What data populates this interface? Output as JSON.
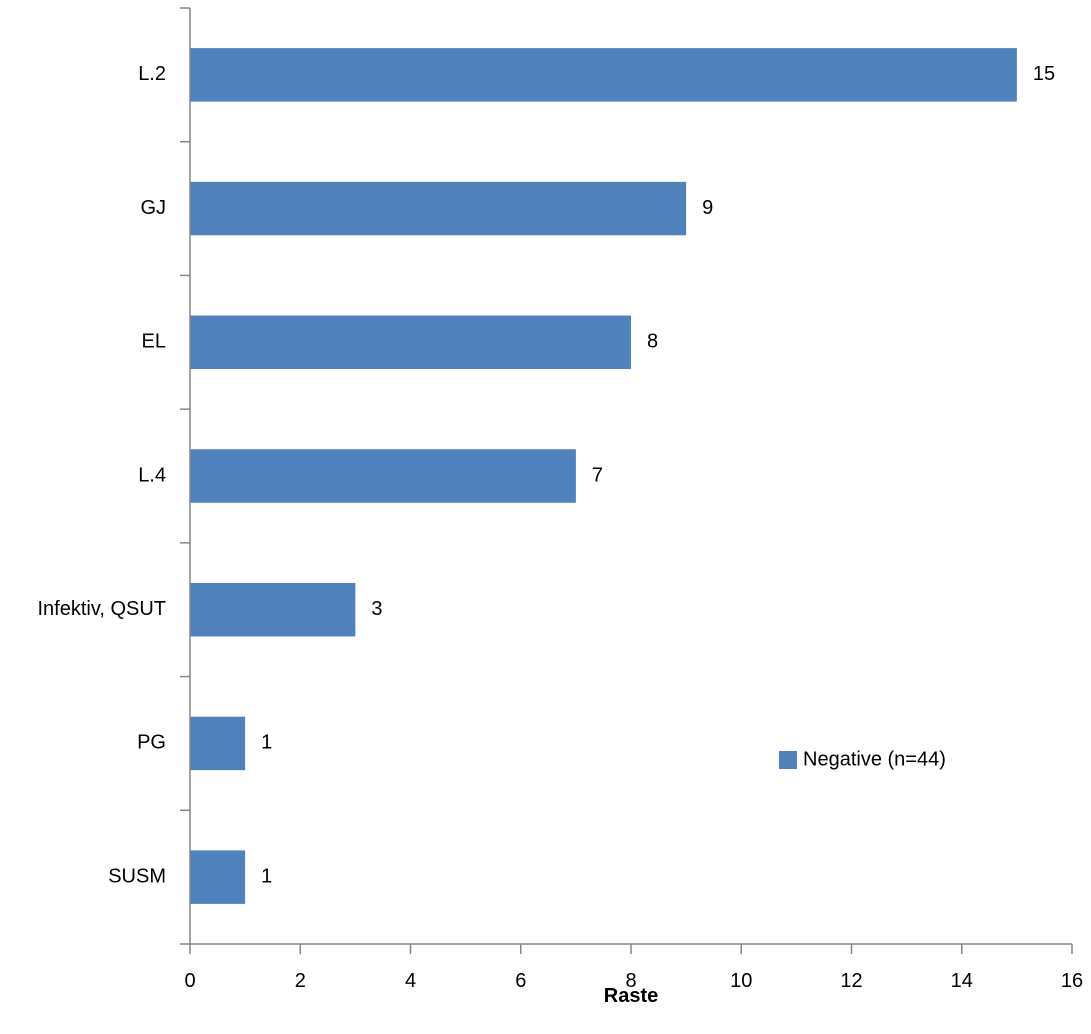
{
  "chart_data": {
    "type": "bar",
    "orientation": "horizontal",
    "categories": [
      "L.2",
      "GJ",
      "EL",
      "L.4",
      "Infektiv, QSUT",
      "PG",
      "SUSM"
    ],
    "series": [
      {
        "name": "Negative (n=44)",
        "values": [
          15,
          9,
          8,
          7,
          3,
          1,
          1
        ],
        "color": "#4f81bd"
      }
    ],
    "data_labels": [
      "15",
      "9",
      "8",
      "7",
      "3",
      "1",
      "1"
    ],
    "title": "",
    "xlabel": "Raste",
    "ylabel": "",
    "xlim": [
      0,
      16
    ],
    "x_ticks": [
      0,
      2,
      4,
      6,
      8,
      10,
      12,
      14,
      16
    ],
    "x_tick_labels": [
      "0",
      "2",
      "4",
      "6",
      "8",
      "10",
      "12",
      "14",
      "16"
    ],
    "grid": false,
    "legend": {
      "position": "right",
      "entries": [
        "Negative (n=44)"
      ]
    }
  }
}
